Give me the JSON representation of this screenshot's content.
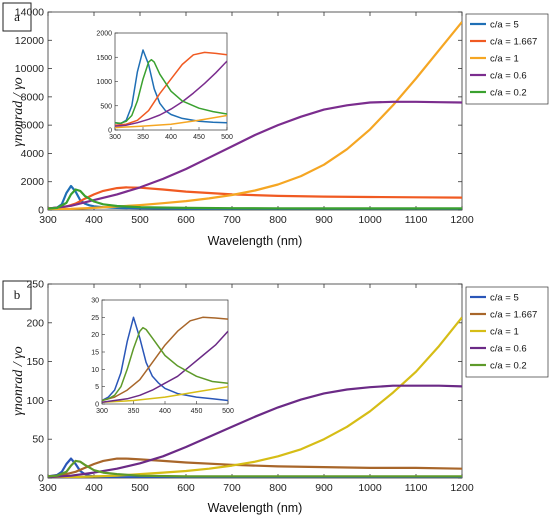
{
  "chart_data": [
    {
      "type": "line",
      "panel_label": "a",
      "xlabel": "Wavelength (nm)",
      "ylabel": "γnonrad / γo",
      "xlim": [
        300,
        1200
      ],
      "ylim": [
        0,
        14000
      ],
      "xticks": [
        300,
        400,
        500,
        600,
        700,
        800,
        900,
        1000,
        1100,
        1200
      ],
      "yticks": [
        0,
        2000,
        4000,
        6000,
        8000,
        10000,
        12000,
        14000
      ],
      "legend_position": "right",
      "series": [
        {
          "name": "c/a = 5",
          "color": "#1f6fb5",
          "x": [
            300,
            320,
            330,
            340,
            350,
            360,
            370,
            380,
            390,
            400,
            420,
            450,
            500,
            600,
            700,
            800,
            900,
            1000,
            1100,
            1200
          ],
          "y": [
            100,
            180,
            400,
            1200,
            1700,
            1300,
            700,
            450,
            330,
            260,
            200,
            150,
            120,
            100,
            100,
            100,
            100,
            100,
            100,
            100
          ]
        },
        {
          "name": "c/a = 1.667",
          "color": "#f05a22",
          "x": [
            300,
            320,
            340,
            360,
            380,
            400,
            420,
            450,
            470,
            500,
            550,
            600,
            700,
            800,
            900,
            1000,
            1100,
            1200
          ],
          "y": [
            120,
            150,
            250,
            450,
            800,
            1100,
            1350,
            1550,
            1600,
            1580,
            1450,
            1300,
            1100,
            1000,
            950,
            920,
            900,
            880
          ]
        },
        {
          "name": "c/a = 1",
          "color": "#f5a623",
          "x": [
            300,
            350,
            400,
            450,
            500,
            550,
            600,
            650,
            700,
            750,
            800,
            850,
            900,
            950,
            1000,
            1050,
            1100,
            1150,
            1200
          ],
          "y": [
            50,
            80,
            150,
            250,
            350,
            480,
            630,
            820,
            1060,
            1380,
            1800,
            2400,
            3200,
            4300,
            5700,
            7400,
            9300,
            11300,
            13300
          ]
        },
        {
          "name": "c/a = 0.6",
          "color": "#7b2d8e",
          "x": [
            300,
            350,
            400,
            450,
            500,
            550,
            600,
            650,
            700,
            750,
            800,
            850,
            900,
            950,
            1000,
            1050,
            1100,
            1150,
            1200
          ],
          "y": [
            100,
            300,
            700,
            1100,
            1600,
            2200,
            2900,
            3700,
            4500,
            5300,
            6000,
            6600,
            7100,
            7400,
            7600,
            7650,
            7650,
            7620,
            7600
          ]
        },
        {
          "name": "c/a = 0.2",
          "color": "#3aa12f",
          "x": [
            300,
            320,
            340,
            350,
            360,
            370,
            380,
            400,
            420,
            450,
            500,
            600,
            700,
            800,
            900,
            1000,
            1100,
            1200
          ],
          "y": [
            100,
            150,
            500,
            1100,
            1450,
            1350,
            1000,
            600,
            400,
            280,
            200,
            150,
            130,
            120,
            110,
            110,
            110,
            110
          ]
        }
      ],
      "inset": {
        "xlim": [
          300,
          500
        ],
        "ylim": [
          0,
          2000
        ],
        "xticks": [
          300,
          350,
          400,
          450,
          500
        ],
        "yticks": [
          0,
          500,
          1000,
          1500,
          2000
        ],
        "series": [
          {
            "color": "#1f6fb5",
            "x": [
              300,
              310,
              320,
              330,
              340,
              350,
              360,
              370,
              380,
              390,
              400,
              420,
              450,
              475,
              500
            ],
            "y": [
              150,
              130,
              200,
              500,
              1200,
              1650,
              1350,
              850,
              550,
              400,
              320,
              240,
              180,
              160,
              150
            ]
          },
          {
            "color": "#f05a22",
            "x": [
              300,
              320,
              340,
              360,
              380,
              400,
              420,
              440,
              460,
              480,
              500
            ],
            "y": [
              100,
              120,
              200,
              400,
              750,
              1050,
              1350,
              1550,
              1600,
              1580,
              1550
            ]
          },
          {
            "color": "#f5a623",
            "x": [
              300,
              350,
              400,
              450,
              500
            ],
            "y": [
              50,
              80,
              120,
              200,
              300
            ]
          },
          {
            "color": "#7b2d8e",
            "x": [
              300,
              320,
              340,
              360,
              380,
              400,
              420,
              440,
              460,
              480,
              500
            ],
            "y": [
              80,
              100,
              150,
              220,
              310,
              430,
              580,
              760,
              960,
              1180,
              1420
            ]
          },
          {
            "color": "#3aa12f",
            "x": [
              300,
              310,
              320,
              330,
              340,
              350,
              360,
              365,
              370,
              380,
              400,
              420,
              450,
              475,
              500
            ],
            "y": [
              150,
              140,
              180,
              300,
              600,
              1050,
              1400,
              1450,
              1400,
              1150,
              800,
              600,
              450,
              380,
              330
            ]
          }
        ]
      }
    },
    {
      "type": "line",
      "panel_label": "b",
      "xlabel": "Wavelength (nm)",
      "ylabel": "γnonrad / γo",
      "xlim": [
        300,
        1200
      ],
      "ylim": [
        0,
        250
      ],
      "xticks": [
        300,
        400,
        500,
        600,
        700,
        800,
        900,
        1000,
        1100,
        1200
      ],
      "yticks": [
        0,
        50,
        100,
        150,
        200,
        250
      ],
      "legend_position": "right",
      "series": [
        {
          "name": "c/a = 5",
          "color": "#2a56b8",
          "x": [
            300,
            320,
            330,
            340,
            350,
            360,
            370,
            380,
            390,
            400,
            450,
            500,
            600,
            700,
            800,
            900,
            1000,
            1100,
            1200
          ],
          "y": [
            2,
            4,
            8,
            18,
            25,
            18,
            9,
            5,
            3,
            2,
            1,
            1,
            1,
            1,
            1,
            1,
            1,
            1,
            1
          ]
        },
        {
          "name": "c/a = 1.667",
          "color": "#a8662a",
          "x": [
            300,
            320,
            340,
            360,
            380,
            400,
            420,
            450,
            470,
            500,
            550,
            600,
            700,
            800,
            900,
            1000,
            1100,
            1200
          ],
          "y": [
            2,
            3,
            5,
            8,
            13,
            18,
            22,
            25,
            25,
            24,
            22,
            20,
            17,
            15,
            14,
            13,
            13,
            12
          ]
        },
        {
          "name": "c/a = 1",
          "color": "#d6bd16",
          "x": [
            300,
            350,
            400,
            450,
            500,
            550,
            600,
            650,
            700,
            750,
            800,
            850,
            900,
            950,
            1000,
            1050,
            1100,
            1150,
            1200
          ],
          "y": [
            1,
            1,
            2,
            3,
            5,
            7,
            9,
            12,
            16,
            21,
            28,
            37,
            50,
            66,
            86,
            110,
            137,
            170,
            207
          ]
        },
        {
          "name": "c/a = 0.6",
          "color": "#6b2a86",
          "x": [
            300,
            350,
            400,
            450,
            500,
            550,
            600,
            650,
            700,
            750,
            800,
            850,
            900,
            950,
            1000,
            1050,
            1100,
            1150,
            1200
          ],
          "y": [
            1,
            3,
            7,
            12,
            19,
            28,
            40,
            53,
            66,
            79,
            91,
            101,
            109,
            114,
            117,
            119,
            119,
            119,
            118
          ]
        },
        {
          "name": "c/a = 0.2",
          "color": "#5e9a2a",
          "x": [
            300,
            320,
            340,
            350,
            360,
            370,
            380,
            400,
            420,
            450,
            500,
            600,
            700,
            800,
            900,
            1000,
            1100,
            1200
          ],
          "y": [
            2,
            3,
            8,
            16,
            22,
            21,
            17,
            10,
            7,
            5,
            3,
            2,
            2,
            2,
            2,
            2,
            2,
            2
          ]
        }
      ],
      "inset": {
        "xlim": [
          300,
          500
        ],
        "ylim": [
          0,
          30
        ],
        "xticks": [
          300,
          350,
          400,
          450,
          500
        ],
        "yticks": [
          0,
          5,
          10,
          15,
          20,
          25,
          30
        ],
        "series": [
          {
            "color": "#2a56b8",
            "x": [
              300,
              310,
              320,
              330,
              340,
              350,
              360,
              370,
              380,
              390,
              400,
              420,
              450,
              475,
              500
            ],
            "y": [
              1,
              2,
              4,
              9,
              18,
              25,
              19,
              12,
              8,
              6,
              4.5,
              3,
              2,
              1.5,
              1
            ]
          },
          {
            "color": "#a8662a",
            "x": [
              300,
              320,
              340,
              360,
              380,
              400,
              420,
              440,
              460,
              480,
              500
            ],
            "y": [
              1,
              2,
              4,
              7,
              12,
              17,
              21,
              24,
              25,
              24.8,
              24.5
            ]
          },
          {
            "color": "#d6bd16",
            "x": [
              300,
              350,
              400,
              450,
              500
            ],
            "y": [
              0.5,
              1,
              2,
              3.5,
              5
            ]
          },
          {
            "color": "#6b2a86",
            "x": [
              300,
              320,
              340,
              360,
              380,
              400,
              420,
              440,
              460,
              480,
              500
            ],
            "y": [
              0.5,
              1,
              1.5,
              2.5,
              4,
              6,
              8,
              11,
              14,
              17,
              21
            ]
          },
          {
            "color": "#5e9a2a",
            "x": [
              300,
              310,
              320,
              330,
              340,
              350,
              360,
              365,
              370,
              380,
              400,
              420,
              450,
              475,
              500
            ],
            "y": [
              1,
              1.5,
              2.5,
              5,
              10,
              16,
              21,
              22,
              21.5,
              19,
              14,
              11,
              8,
              6.5,
              6
            ]
          }
        ]
      }
    }
  ]
}
